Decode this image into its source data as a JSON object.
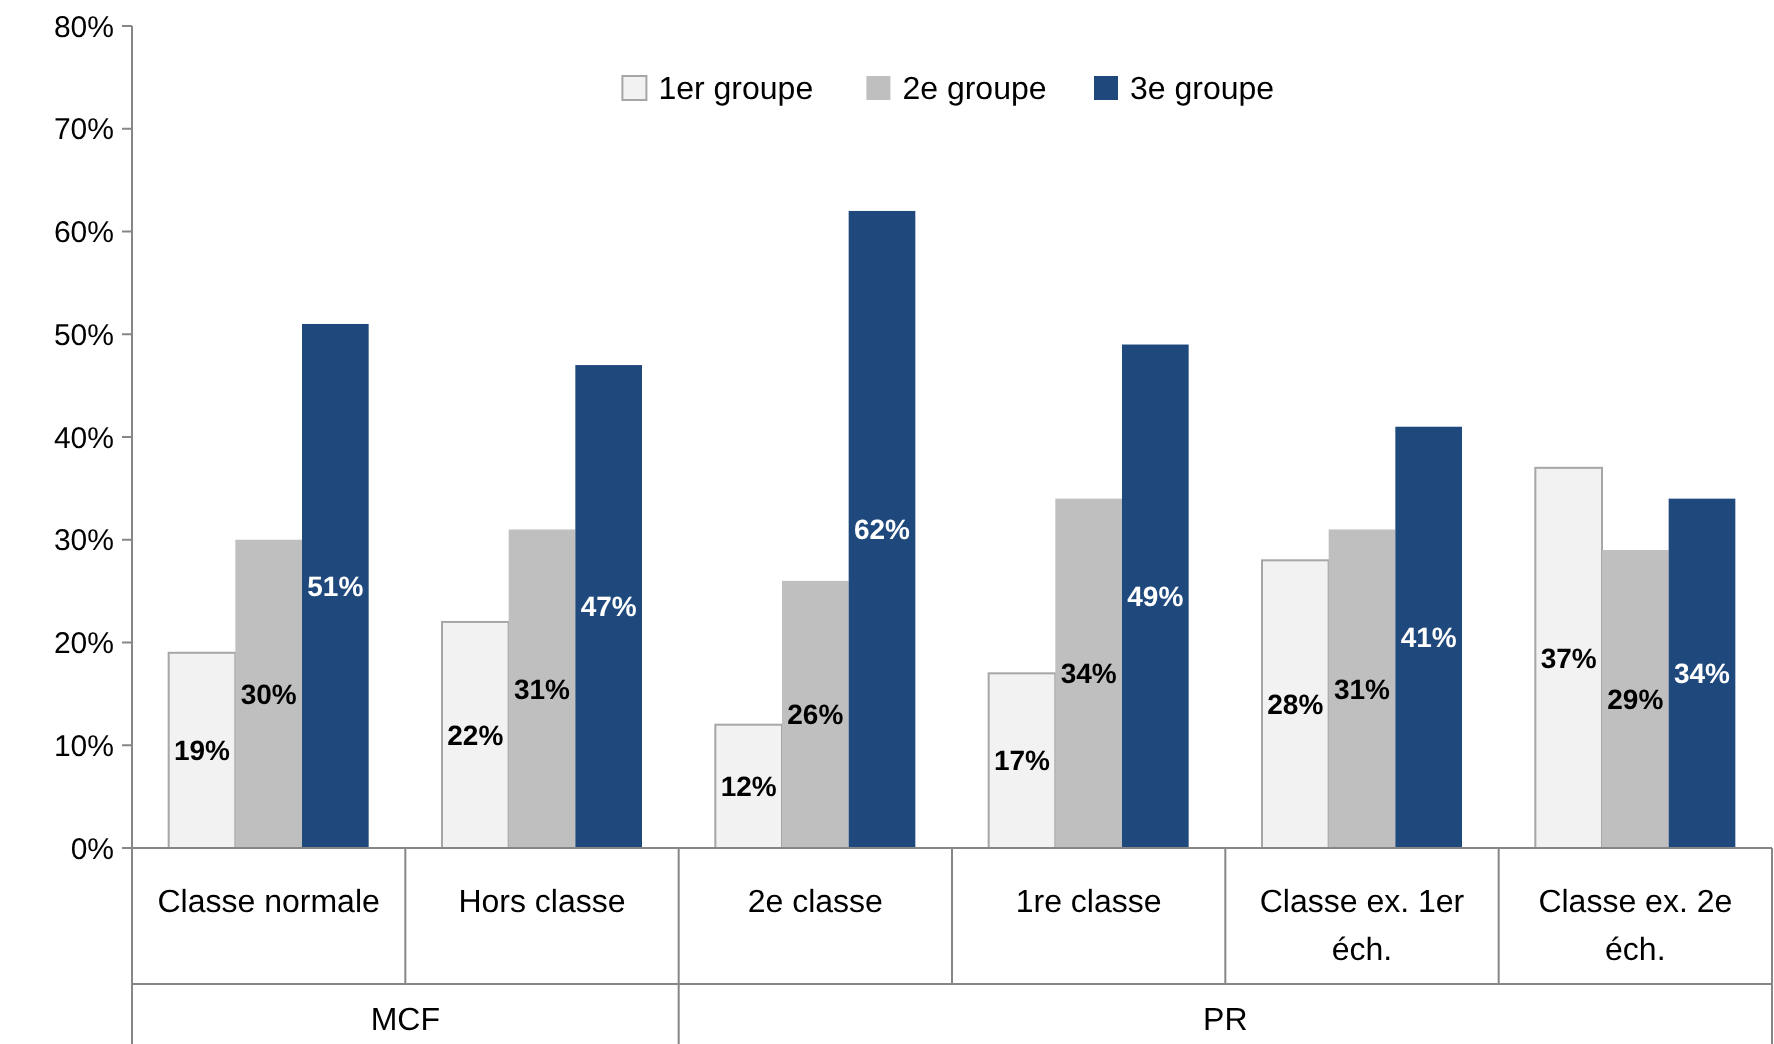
{
  "chart_data": {
    "type": "bar",
    "categories": [
      "Classe normale",
      "Hors classe",
      "2e classe",
      "1re classe",
      "Classe ex. 1er éch.",
      "Classe ex. 2e éch."
    ],
    "series": [
      {
        "name": "1er groupe",
        "color": "#f2f2f2",
        "values": [
          19,
          22,
          12,
          17,
          28,
          37
        ],
        "value_labels": [
          "19%",
          "22%",
          "12%",
          "17%",
          "28%",
          "37%"
        ]
      },
      {
        "name": "2e groupe",
        "color": "#bfbfbf",
        "values": [
          30,
          31,
          26,
          34,
          31,
          29
        ],
        "value_labels": [
          "30%",
          "31%",
          "26%",
          "34%",
          "31%",
          "29%"
        ]
      },
      {
        "name": "3e groupe",
        "color": "#1f497d",
        "values": [
          51,
          47,
          62,
          49,
          41,
          34
        ],
        "value_labels": [
          "51%",
          "47%",
          "62%",
          "49%",
          "41%",
          "34%"
        ]
      }
    ],
    "ylim": [
      0,
      80
    ],
    "yticks": [
      {
        "value": 0,
        "label": "0%"
      },
      {
        "value": 10,
        "label": "10%"
      },
      {
        "value": 20,
        "label": "20%"
      },
      {
        "value": 30,
        "label": "30%"
      },
      {
        "value": 40,
        "label": "40%"
      },
      {
        "value": 50,
        "label": "50%"
      },
      {
        "value": 60,
        "label": "60%"
      },
      {
        "value": 70,
        "label": "70%"
      },
      {
        "value": 80,
        "label": "80%"
      }
    ],
    "grid": false,
    "legend": "top",
    "annotations": [
      "MCF",
      "PR"
    ]
  }
}
